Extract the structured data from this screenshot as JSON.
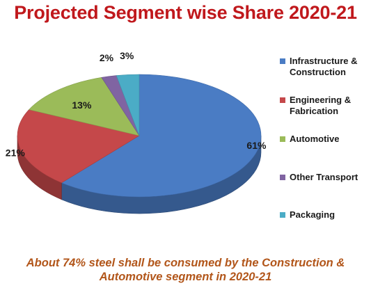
{
  "chart_data": {
    "type": "pie",
    "title": "Projected Segment wise Share 2020-21",
    "categories": [
      "Infrastructure & Construction",
      "Engineering & Fabrication",
      "Automotive",
      "Other Transport",
      "Packaging"
    ],
    "values": [
      61,
      21,
      13,
      2,
      3
    ],
    "data_labels": [
      "61%",
      "21%",
      "13%",
      "2%",
      "3%"
    ],
    "colors": [
      "#4a7cc4",
      "#c5484a",
      "#9bbb59",
      "#8064a2",
      "#4bacc6"
    ],
    "style": "3d",
    "legend_position": "right"
  },
  "legend": {
    "items": [
      {
        "lines": [
          "Infrastructure &",
          "Construction"
        ],
        "color": "#4a7cc4"
      },
      {
        "lines": [
          "Engineering &",
          "Fabrication"
        ],
        "color": "#c5484a"
      },
      {
        "lines": [
          "Automotive"
        ],
        "color": "#9bbb59"
      },
      {
        "lines": [
          "Other Transport"
        ],
        "color": "#8064a2"
      },
      {
        "lines": [
          "Packaging"
        ],
        "color": "#4bacc6"
      }
    ]
  },
  "caption": {
    "line1": "About 74% steel shall be consumed by the Construction &",
    "line2": "Automotive segment in 2020-21"
  }
}
